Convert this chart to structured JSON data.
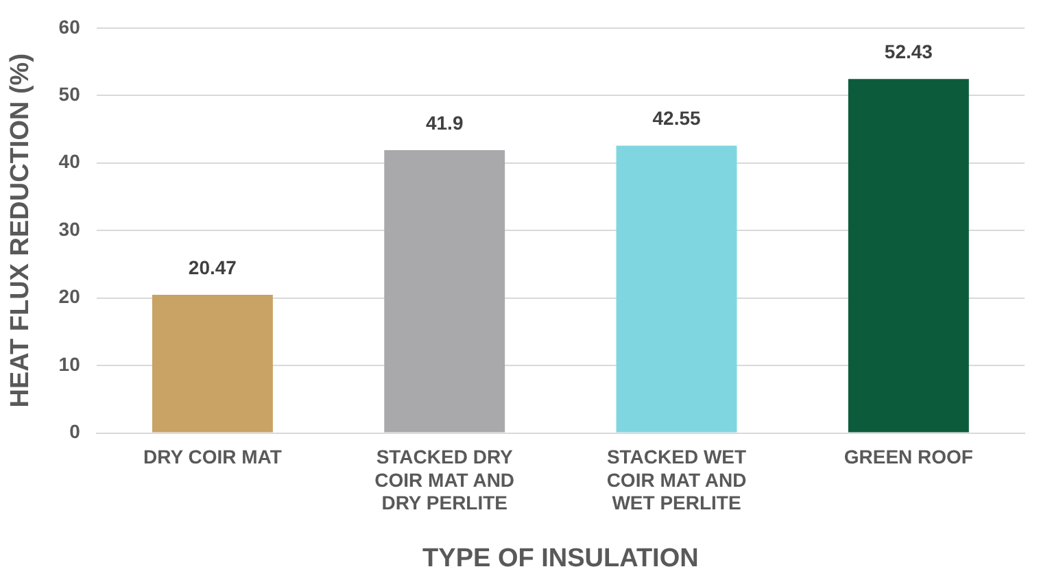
{
  "chart_data": {
    "type": "bar",
    "xlabel": "TYPE OF INSULATION",
    "ylabel": "HEAT FLUX REDUCTION (%)",
    "categories": [
      "DRY COIR MAT",
      "STACKED DRY COIR MAT AND DRY PERLITE",
      "STACKED WET COIR MAT AND WET PERLITE",
      "GREEN ROOF"
    ],
    "values": [
      20.47,
      41.9,
      42.55,
      52.43
    ],
    "colors": [
      "#c9a265",
      "#a9a9ab",
      "#7fd6e0",
      "#0c5c3c"
    ],
    "ylim": [
      0,
      60
    ],
    "yticks": [
      0,
      10,
      20,
      30,
      40,
      50,
      60
    ],
    "grid": "y",
    "data_labels": true,
    "legend": false
  }
}
